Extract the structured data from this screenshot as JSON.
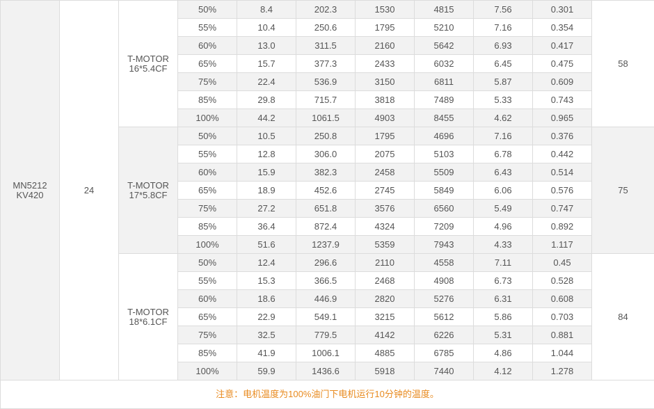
{
  "table": {
    "motor": [
      "MN5212",
      "KV420"
    ],
    "voltage": "24",
    "groups": [
      {
        "propeller": [
          "T-MOTOR",
          "16*5.4CF"
        ],
        "temperature": "58",
        "rows": [
          [
            "50%",
            "8.4",
            "202.3",
            "1530",
            "4815",
            "7.56",
            "0.301"
          ],
          [
            "55%",
            "10.4",
            "250.6",
            "1795",
            "5210",
            "7.16",
            "0.354"
          ],
          [
            "60%",
            "13.0",
            "311.5",
            "2160",
            "5642",
            "6.93",
            "0.417"
          ],
          [
            "65%",
            "15.7",
            "377.3",
            "2433",
            "6032",
            "6.45",
            "0.475"
          ],
          [
            "75%",
            "22.4",
            "536.9",
            "3150",
            "6811",
            "5.87",
            "0.609"
          ],
          [
            "85%",
            "29.8",
            "715.7",
            "3818",
            "7489",
            "5.33",
            "0.743"
          ],
          [
            "100%",
            "44.2",
            "1061.5",
            "4903",
            "8455",
            "4.62",
            "0.965"
          ]
        ]
      },
      {
        "propeller": [
          "T-MOTOR",
          "17*5.8CF"
        ],
        "temperature": "75",
        "rows": [
          [
            "50%",
            "10.5",
            "250.8",
            "1795",
            "4696",
            "7.16",
            "0.376"
          ],
          [
            "55%",
            "12.8",
            "306.0",
            "2075",
            "5103",
            "6.78",
            "0.442"
          ],
          [
            "60%",
            "15.9",
            "382.3",
            "2458",
            "5509",
            "6.43",
            "0.514"
          ],
          [
            "65%",
            "18.9",
            "452.6",
            "2745",
            "5849",
            "6.06",
            "0.576"
          ],
          [
            "75%",
            "27.2",
            "651.8",
            "3576",
            "6560",
            "5.49",
            "0.747"
          ],
          [
            "85%",
            "36.4",
            "872.4",
            "4324",
            "7209",
            "4.96",
            "0.892"
          ],
          [
            "100%",
            "51.6",
            "1237.9",
            "5359",
            "7943",
            "4.33",
            "1.117"
          ]
        ]
      },
      {
        "propeller": [
          "T-MOTOR",
          "18*6.1CF"
        ],
        "temperature": "84",
        "rows": [
          [
            "50%",
            "12.4",
            "296.6",
            "2110",
            "4558",
            "7.11",
            "0.45"
          ],
          [
            "55%",
            "15.3",
            "366.5",
            "2468",
            "4908",
            "6.73",
            "0.528"
          ],
          [
            "60%",
            "18.6",
            "446.9",
            "2820",
            "5276",
            "6.31",
            "0.608"
          ],
          [
            "65%",
            "22.9",
            "549.1",
            "3215",
            "5612",
            "5.86",
            "0.703"
          ],
          [
            "75%",
            "32.5",
            "779.5",
            "4142",
            "6226",
            "5.31",
            "0.881"
          ],
          [
            "85%",
            "41.9",
            "1006.1",
            "4885",
            "6785",
            "4.86",
            "1.044"
          ],
          [
            "100%",
            "59.9",
            "1436.6",
            "5918",
            "7440",
            "4.12",
            "1.278"
          ]
        ]
      }
    ],
    "note": "注意：电机温度为100%油门下电机运行10分钟的温度。"
  }
}
